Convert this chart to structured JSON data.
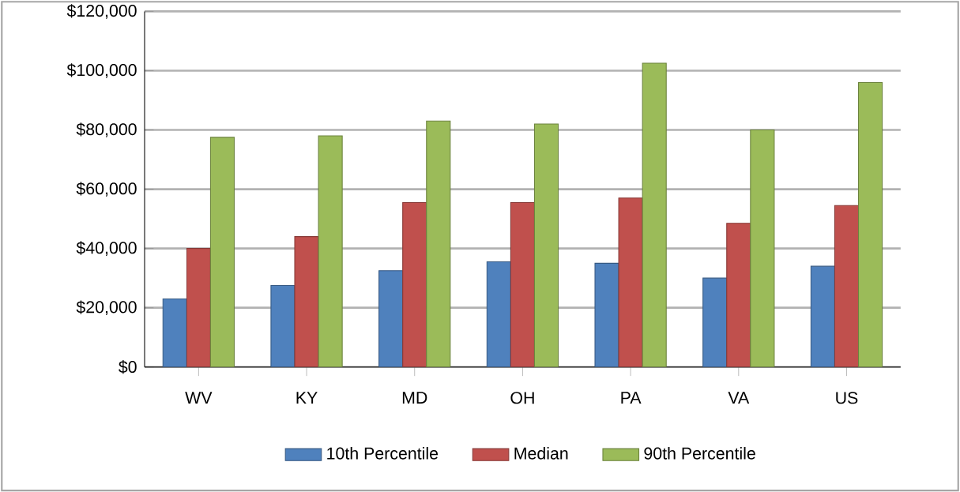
{
  "chart_data": {
    "type": "bar",
    "categories": [
      "WV",
      "KY",
      "MD",
      "OH",
      "PA",
      "VA",
      "US"
    ],
    "series": [
      {
        "name": "10th Percentile",
        "color": "#4f81bd",
        "values": [
          23000,
          27500,
          32500,
          35500,
          35000,
          30000,
          34000
        ]
      },
      {
        "name": "Median",
        "color": "#c0504d",
        "values": [
          40000,
          44000,
          55500,
          55500,
          57000,
          48500,
          54500
        ]
      },
      {
        "name": "90th Percentile",
        "color": "#9bbb59",
        "values": [
          77500,
          78000,
          83000,
          82000,
          102500,
          80000,
          96000
        ]
      }
    ],
    "ylim": [
      0,
      120000
    ],
    "yticks": [
      {
        "value": 0,
        "label": "$0"
      },
      {
        "value": 20000,
        "label": "$20,000"
      },
      {
        "value": 40000,
        "label": "$40,000"
      },
      {
        "value": 60000,
        "label": "$60,000"
      },
      {
        "value": 80000,
        "label": "$80,000"
      },
      {
        "value": 100000,
        "label": "$100,000"
      },
      {
        "value": 120000,
        "label": "$120,000"
      }
    ],
    "grid": "y",
    "legend": "bottom"
  }
}
